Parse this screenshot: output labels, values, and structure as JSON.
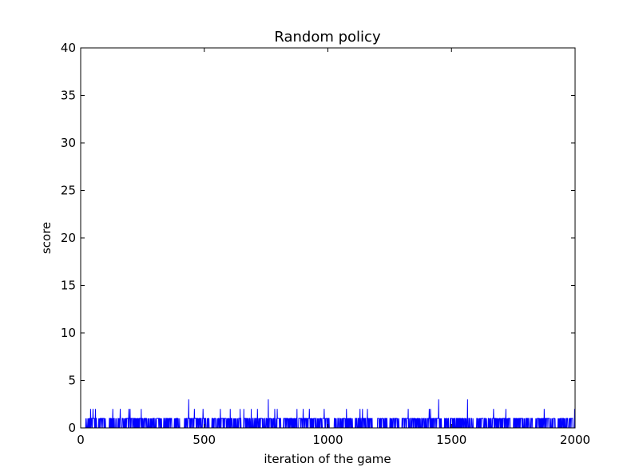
{
  "chart_data": {
    "type": "line",
    "title": "Random policy",
    "xlabel": "iteration of the game",
    "ylabel": "score",
    "xlim": [
      0,
      2000
    ],
    "ylim": [
      0,
      40
    ],
    "xticks": [
      0,
      500,
      1000,
      1500,
      2000
    ],
    "yticks": [
      0,
      5,
      10,
      15,
      20,
      25,
      30,
      35,
      40
    ],
    "grid": false,
    "series": [
      {
        "color": "#0000ff",
        "n_points": 2000,
        "spikes_3": [
          437,
          759,
          1448,
          1565
        ],
        "spikes_2": [
          40,
          50,
          60,
          130,
          160,
          195,
          200,
          245,
          460,
          495,
          565,
          605,
          645,
          660,
          690,
          715,
          785,
          795,
          875,
          900,
          925,
          985,
          1075,
          1130,
          1140,
          1160,
          1325,
          1410,
          1415,
          1670,
          1720,
          1875,
          1998
        ],
        "active_ranges": [
          [
            20,
            100
          ],
          [
            115,
            400
          ],
          [
            420,
            745
          ],
          [
            750,
            1290
          ],
          [
            1300,
            1515
          ],
          [
            1520,
            1990
          ]
        ],
        "gaps": [
          [
            65,
            70
          ],
          [
            145,
            150
          ],
          [
            330,
            335
          ],
          [
            520,
            530
          ],
          [
            650,
            660
          ],
          [
            810,
            820
          ],
          [
            1010,
            1020
          ],
          [
            1100,
            1110
          ],
          [
            1180,
            1200
          ],
          [
            1240,
            1250
          ],
          [
            1460,
            1470
          ],
          [
            1590,
            1600
          ],
          [
            1740,
            1750
          ],
          [
            1830,
            1840
          ],
          [
            1920,
            1930
          ]
        ]
      }
    ]
  }
}
